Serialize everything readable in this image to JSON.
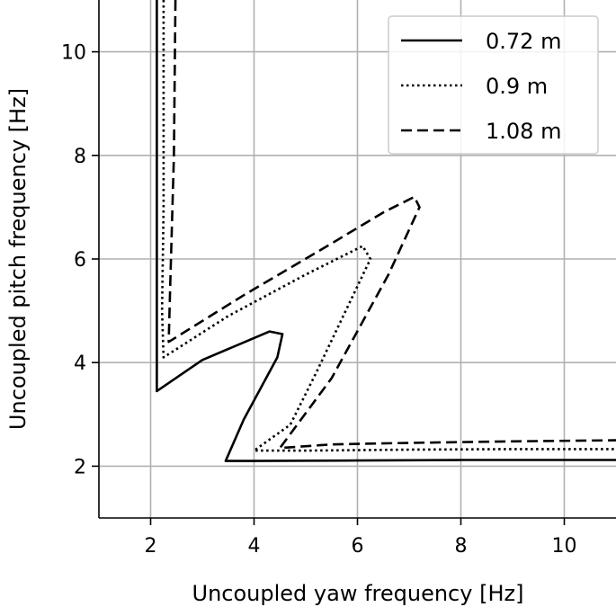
{
  "chart_data": {
    "type": "line",
    "xlabel": "Uncoupled yaw frequency [Hz]",
    "ylabel": "Uncoupled pitch frequency [Hz]",
    "xlim": [
      1.0,
      11.0
    ],
    "ylim": [
      1.0,
      11.0
    ],
    "xticks": [
      2,
      4,
      6,
      8,
      10
    ],
    "yticks": [
      2,
      4,
      6,
      8,
      10
    ],
    "grid": true,
    "legend_position": "top-right",
    "series": [
      {
        "name": "0.72 m",
        "style": "solid",
        "color": "#000000",
        "points": [
          [
            2.12,
            11.0
          ],
          [
            2.12,
            6.0
          ],
          [
            2.12,
            3.45
          ],
          [
            3.0,
            4.05
          ],
          [
            4.3,
            4.6
          ],
          [
            4.55,
            4.55
          ],
          [
            4.45,
            4.1
          ],
          [
            3.8,
            2.9
          ],
          [
            3.45,
            2.1
          ],
          [
            4.0,
            2.1
          ],
          [
            6.0,
            2.11
          ],
          [
            8.0,
            2.12
          ],
          [
            11.0,
            2.12
          ]
        ]
      },
      {
        "name": "0.9 m",
        "style": "dotted",
        "color": "#000000",
        "points": [
          [
            2.25,
            11.0
          ],
          [
            2.25,
            7.0
          ],
          [
            2.22,
            5.0
          ],
          [
            2.25,
            4.1
          ],
          [
            3.5,
            4.9
          ],
          [
            5.0,
            5.7
          ],
          [
            6.1,
            6.25
          ],
          [
            6.25,
            6.0
          ],
          [
            5.2,
            3.8
          ],
          [
            4.7,
            2.8
          ],
          [
            4.0,
            2.3
          ],
          [
            5.0,
            2.3
          ],
          [
            7.0,
            2.32
          ],
          [
            9.0,
            2.33
          ],
          [
            11.0,
            2.33
          ]
        ]
      },
      {
        "name": "1.08 m",
        "style": "dashed",
        "color": "#000000",
        "points": [
          [
            2.48,
            11.0
          ],
          [
            2.45,
            8.0
          ],
          [
            2.38,
            5.5
          ],
          [
            2.35,
            4.4
          ],
          [
            3.8,
            5.3
          ],
          [
            5.5,
            6.3
          ],
          [
            6.5,
            6.9
          ],
          [
            7.1,
            7.2
          ],
          [
            7.2,
            7.0
          ],
          [
            6.6,
            5.7
          ],
          [
            5.5,
            3.7
          ],
          [
            4.5,
            2.35
          ],
          [
            5.5,
            2.42
          ],
          [
            7.0,
            2.45
          ],
          [
            9.0,
            2.48
          ],
          [
            11.0,
            2.5
          ]
        ]
      }
    ]
  }
}
